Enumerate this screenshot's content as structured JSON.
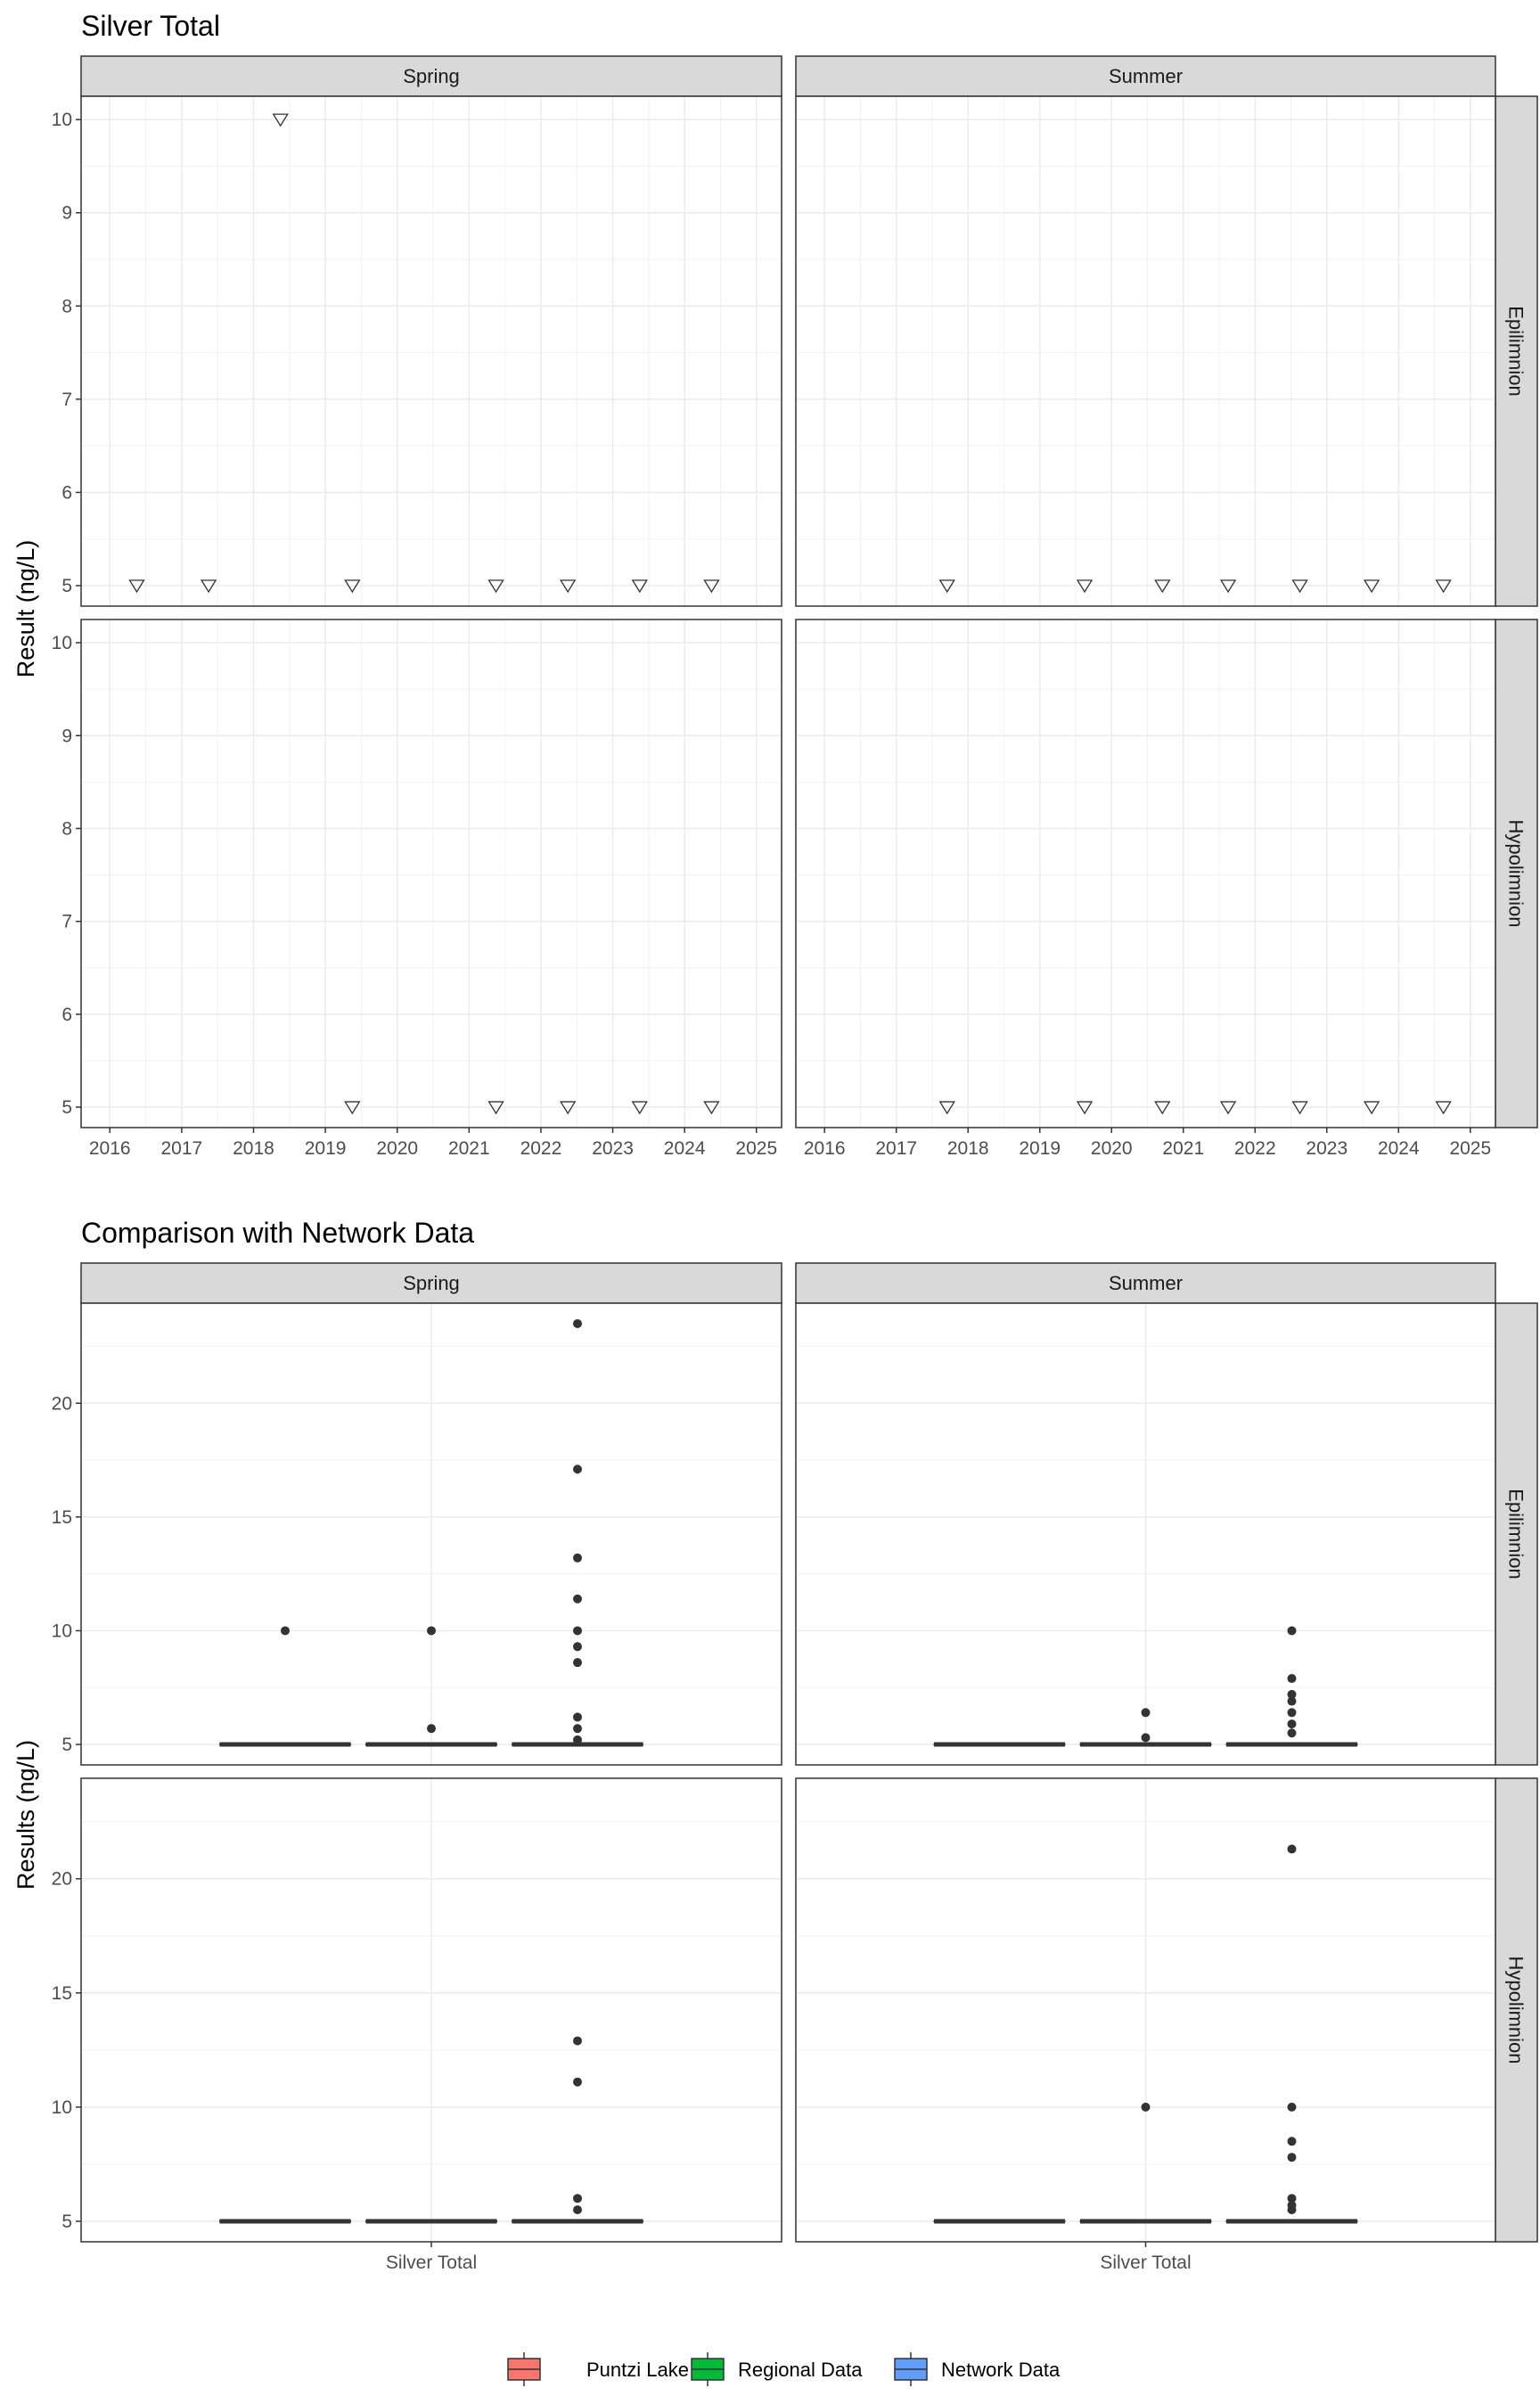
{
  "chart_data": [
    {
      "type": "scatter",
      "title": "Silver Total",
      "ylabel": "Result (ng/L)",
      "xlabel": "",
      "marker": "open-triangle-down",
      "grid": true,
      "columns": [
        "Spring",
        "Summer"
      ],
      "rows": [
        "Epilimnion",
        "Hypolimnion"
      ],
      "xlim": [
        2015.6,
        2025.35
      ],
      "ylim": [
        4.78,
        10.25
      ],
      "xticks": [
        "2016",
        "2017",
        "2018",
        "2019",
        "2020",
        "2021",
        "2022",
        "2023",
        "2024",
        "2025"
      ],
      "yticks": [
        "5",
        "6",
        "7",
        "8",
        "9",
        "10"
      ],
      "panels": [
        {
          "season": "Spring",
          "layer": "Epilimnion",
          "x": [
            "2016-05",
            "2017-05",
            "2018-05",
            "2019-05",
            "2021-05",
            "2022-05",
            "2023-05",
            "2024-05"
          ],
          "y": [
            5,
            5,
            10,
            5,
            5,
            5,
            5,
            5
          ]
        },
        {
          "season": "Summer",
          "layer": "Epilimnion",
          "x": [
            "2017-09",
            "2019-08",
            "2020-09",
            "2021-08",
            "2022-08",
            "2023-08",
            "2024-08"
          ],
          "y": [
            5,
            5,
            5,
            5,
            5,
            5,
            5
          ]
        },
        {
          "season": "Spring",
          "layer": "Hypolimnion",
          "x": [
            "2019-05",
            "2021-05",
            "2022-05",
            "2023-05",
            "2024-05"
          ],
          "y": [
            5,
            5,
            5,
            5,
            5
          ]
        },
        {
          "season": "Summer",
          "layer": "Hypolimnion",
          "x": [
            "2017-09",
            "2019-08",
            "2020-09",
            "2021-08",
            "2022-08",
            "2023-08",
            "2024-08"
          ],
          "y": [
            5,
            5,
            5,
            5,
            5,
            5,
            5
          ]
        }
      ]
    },
    {
      "type": "box",
      "title": "Comparison with Network Data",
      "ylabel": "Results (ng/L)",
      "grid": true,
      "columns": [
        "Spring",
        "Summer"
      ],
      "rows": [
        "Epilimnion",
        "Hypolimnion"
      ],
      "categories": [
        "Silver Total"
      ],
      "ylim": [
        4.1,
        24.4
      ],
      "yticks": [
        "5",
        "10",
        "15",
        "20"
      ],
      "legend": {
        "position": "bottom",
        "entries": [
          {
            "name": "Puntzi Lake",
            "color": "#F8766D"
          },
          {
            "name": "Regional Data",
            "color": "#00BA38"
          },
          {
            "name": "Network Data",
            "color": "#619CFF"
          }
        ]
      },
      "panels": [
        {
          "season": "Spring",
          "layer": "Epilimnion",
          "groups": [
            {
              "name": "Puntzi Lake",
              "median": 5,
              "q1": 5,
              "q3": 5,
              "outliers": [
                10
              ]
            },
            {
              "name": "Regional Data",
              "median": 5,
              "q1": 5,
              "q3": 5,
              "outliers": [
                10,
                5.7
              ]
            },
            {
              "name": "Network Data",
              "median": 5,
              "q1": 5,
              "q3": 5,
              "outliers": [
                23.5,
                17.1,
                13.2,
                11.4,
                10,
                9.3,
                8.6,
                6.2,
                5.7,
                5.2
              ]
            }
          ]
        },
        {
          "season": "Summer",
          "layer": "Epilimnion",
          "groups": [
            {
              "name": "Puntzi Lake",
              "median": 5,
              "q1": 5,
              "q3": 5,
              "outliers": []
            },
            {
              "name": "Regional Data",
              "median": 5,
              "q1": 5,
              "q3": 5,
              "outliers": [
                6.4,
                5.3
              ]
            },
            {
              "name": "Network Data",
              "median": 5,
              "q1": 5,
              "q3": 5,
              "outliers": [
                10,
                7.9,
                7.2,
                6.9,
                6.4,
                5.9,
                5.5
              ]
            }
          ]
        },
        {
          "season": "Spring",
          "layer": "Hypolimnion",
          "groups": [
            {
              "name": "Puntzi Lake",
              "median": 5,
              "q1": 5,
              "q3": 5,
              "outliers": []
            },
            {
              "name": "Regional Data",
              "median": 5,
              "q1": 5,
              "q3": 5,
              "outliers": []
            },
            {
              "name": "Network Data",
              "median": 5,
              "q1": 5,
              "q3": 5,
              "outliers": [
                12.9,
                11.1,
                6,
                5.5
              ]
            }
          ]
        },
        {
          "season": "Summer",
          "layer": "Hypolimnion",
          "groups": [
            {
              "name": "Puntzi Lake",
              "median": 5,
              "q1": 5,
              "q3": 5,
              "outliers": []
            },
            {
              "name": "Regional Data",
              "median": 5,
              "q1": 5,
              "q3": 5,
              "outliers": [
                10
              ]
            },
            {
              "name": "Network Data",
              "median": 5,
              "q1": 5,
              "q3": 5,
              "outliers": [
                21.3,
                10,
                8.5,
                7.8,
                6,
                5.7,
                5.5
              ]
            }
          ]
        }
      ]
    }
  ]
}
